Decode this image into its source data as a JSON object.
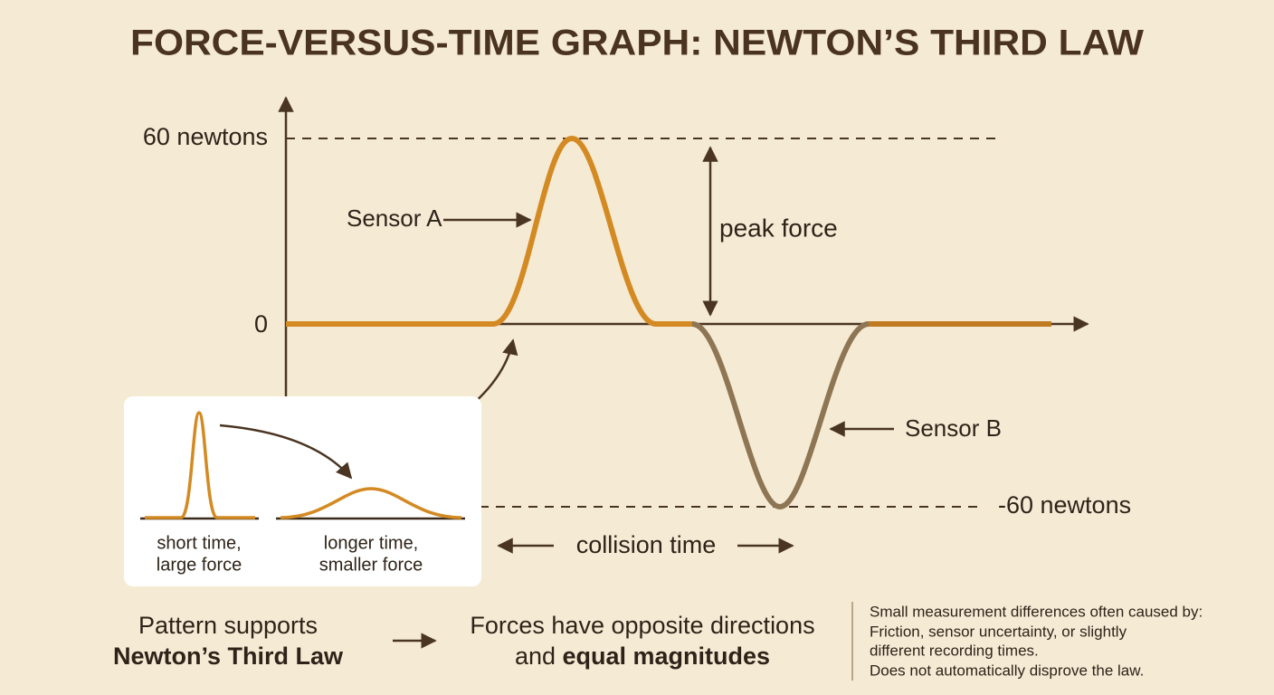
{
  "title": "FORCE-VERSUS-TIME GRAPH: NEWTON’S THIRD LAW",
  "graph": {
    "y_labels": [
      "60 newtons",
      "0",
      "-60 newtons"
    ],
    "annotations": {
      "sensor_a": "Sensor A",
      "sensor_b": "Sensor B",
      "peak_force": "peak force",
      "collision_time": "collision time"
    }
  },
  "inset": {
    "captions": [
      [
        "short time,",
        "large force"
      ],
      [
        "longer time,",
        "smaller force"
      ]
    ]
  },
  "conclusion": {
    "pattern": [
      "Pattern supports",
      "Newton’s Third Law"
    ],
    "result": [
      "Forces have opposite directions",
      "and ",
      "equal magnitudes"
    ]
  },
  "note": {
    "lines": [
      "Small measurement differences often caused by:",
      "Friction, sensor uncertainty, or slightly",
      "different recording times.",
      "Does not automatically disprove the law."
    ]
  }
}
